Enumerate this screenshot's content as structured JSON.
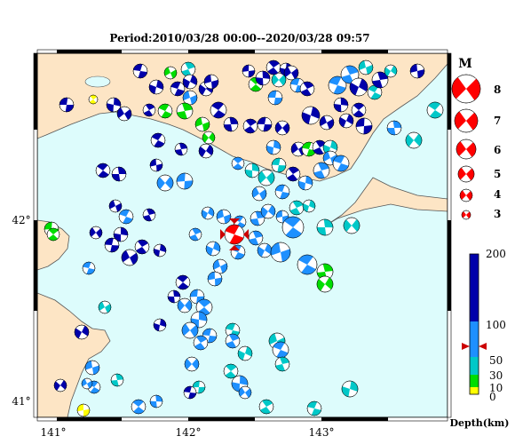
{
  "title": "Period:2010/03/28 00:00--2020/03/28 09:57",
  "map": {
    "lon_ticks": [
      "141°",
      "142°",
      "143°"
    ],
    "lat_ticks": [
      "42°",
      "41°"
    ],
    "colors": {
      "sea": "#ddfcfc",
      "land": "#fde5c5",
      "coast": "#555555",
      "lake": "#ddfcfc"
    }
  },
  "magnitude_legend": {
    "title": "M",
    "labels": [
      "8",
      "7",
      "6",
      "5",
      "4",
      "3"
    ],
    "color": "#ff0000"
  },
  "depth_legend": {
    "title": "Depth(km)",
    "ticks": [
      "200",
      "100",
      "50",
      "30",
      "10",
      "0"
    ],
    "marker_value_km": 75,
    "colors": [
      "#ffff00",
      "#00dd00",
      "#00c8c8",
      "#1e90ff",
      "#0000aa"
    ]
  },
  "highlight_event": {
    "color": "#ff0000",
    "marker_color": "#cc0000",
    "icon": "focal-mechanism-beachball"
  },
  "events_icon": "focal-mechanism-beachball"
}
